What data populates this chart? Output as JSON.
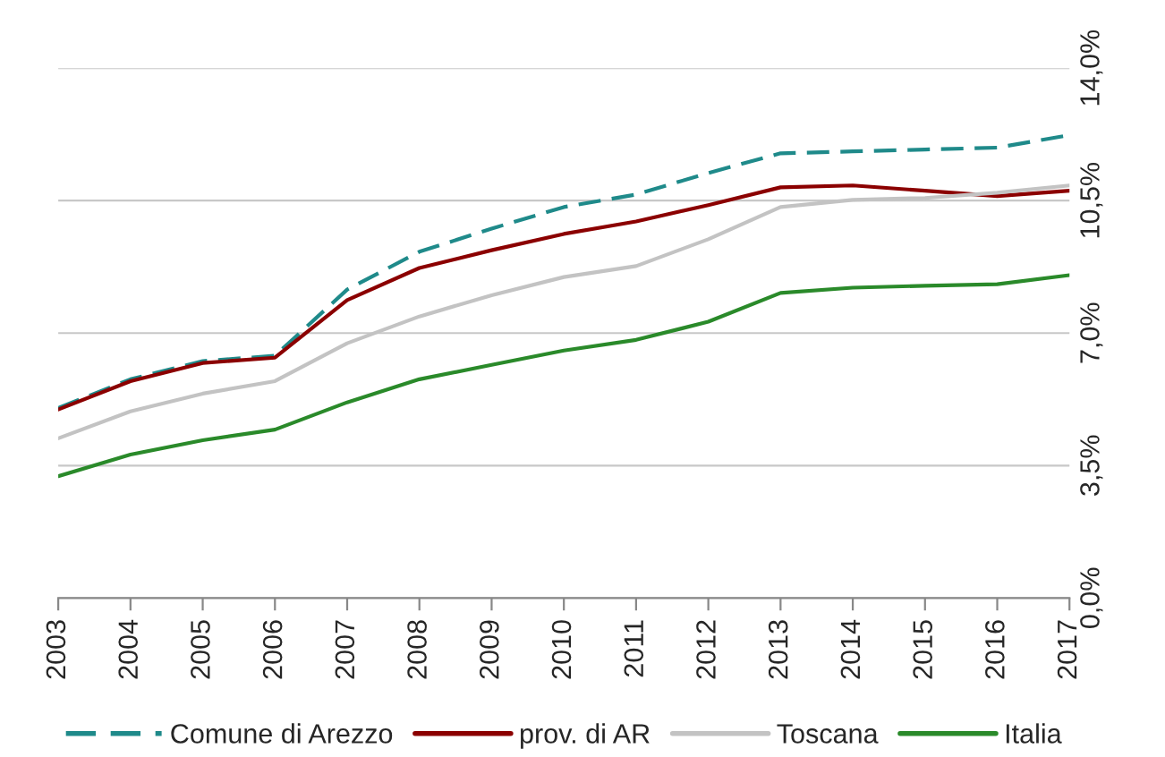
{
  "chart_data": {
    "type": "line",
    "x": [
      2003,
      2004,
      2005,
      2006,
      2007,
      2008,
      2009,
      2010,
      2011,
      2012,
      2013,
      2014,
      2015,
      2016,
      2017
    ],
    "series": [
      {
        "name": "Comune di Arezzo",
        "color": "#1f8a8a",
        "line_style": "dashed",
        "values": [
          5.02,
          5.78,
          6.26,
          6.4,
          8.15,
          9.15,
          9.76,
          10.33,
          10.66,
          11.23,
          11.75,
          11.8,
          11.85,
          11.9,
          12.23
        ]
      },
      {
        "name": "prov. di AR",
        "color": "#8b0000",
        "line_style": "solid",
        "values": [
          4.98,
          5.73,
          6.21,
          6.35,
          7.87,
          8.72,
          9.19,
          9.62,
          9.95,
          10.38,
          10.85,
          10.9,
          10.76,
          10.62,
          10.76
        ]
      },
      {
        "name": "Toscana",
        "color": "#c3c3c3",
        "line_style": "solid",
        "values": [
          4.22,
          4.93,
          5.4,
          5.73,
          6.73,
          7.44,
          8.0,
          8.48,
          8.77,
          9.48,
          10.33,
          10.52,
          10.57,
          10.71,
          10.9
        ]
      },
      {
        "name": "Italia",
        "color": "#2a8a2a",
        "line_style": "solid",
        "values": [
          3.22,
          3.79,
          4.17,
          4.45,
          5.17,
          5.78,
          6.16,
          6.54,
          6.82,
          7.3,
          8.06,
          8.2,
          8.25,
          8.29,
          8.53
        ]
      }
    ],
    "xlim": [
      2003,
      2017
    ],
    "xticks": [
      2003,
      2004,
      2005,
      2006,
      2007,
      2008,
      2009,
      2010,
      2011,
      2012,
      2013,
      2014,
      2015,
      2016,
      2017
    ],
    "ylim": [
      0,
      14
    ],
    "yticks": [
      {
        "value": 0,
        "label": "0,0%"
      },
      {
        "value": 3.5,
        "label": "3,5%"
      },
      {
        "value": 7,
        "label": "7,0%"
      },
      {
        "value": 10.5,
        "label": "10,5%"
      },
      {
        "value": 14,
        "label": "14,0%"
      }
    ],
    "grid": "y",
    "legend": "bottom",
    "marker": "none"
  }
}
